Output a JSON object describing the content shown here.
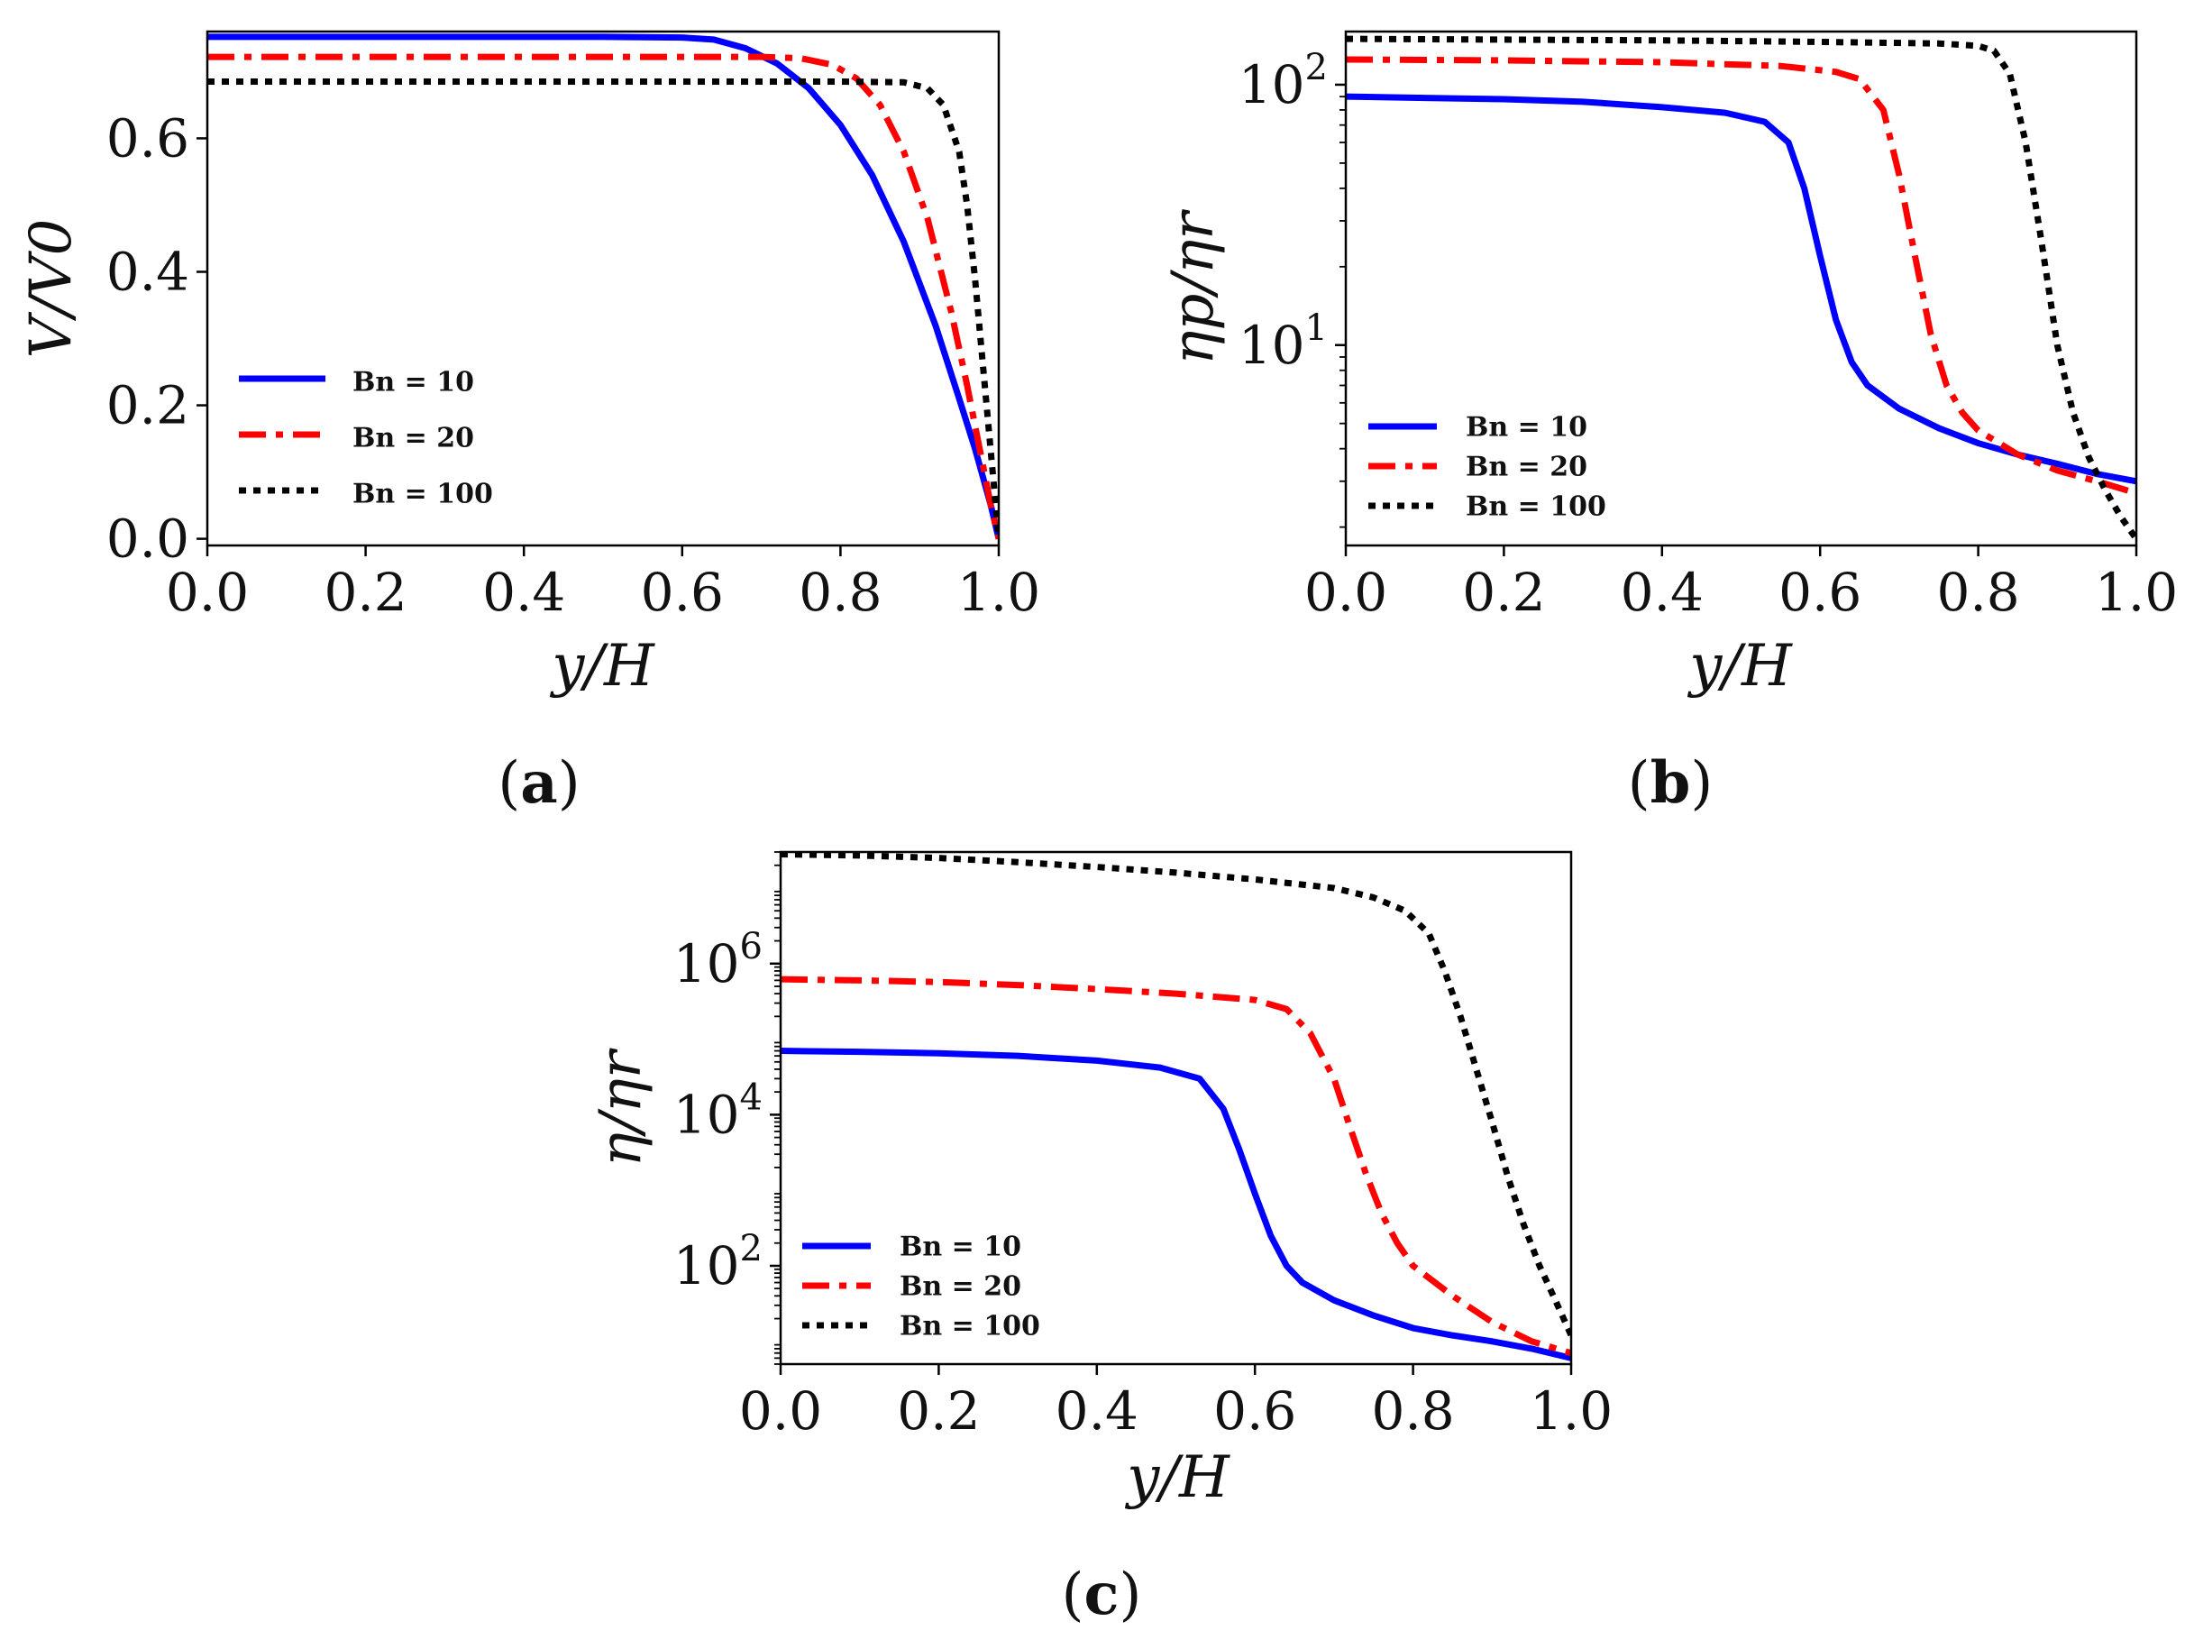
{
  "chart_data": [
    {
      "id": "a",
      "type": "line",
      "panel_label": "a",
      "xlabel": "y/H",
      "ylabel": "V/V0",
      "yscale": "linear",
      "xlim": [
        0.0,
        1.0
      ],
      "ylim": [
        -0.01,
        0.76
      ],
      "xticks": [
        0.0,
        0.2,
        0.4,
        0.6,
        0.8,
        1.0
      ],
      "xtick_labels": [
        "0.0",
        "0.2",
        "0.4",
        "0.6",
        "0.8",
        "1.0"
      ],
      "yticks": [
        0.0,
        0.2,
        0.4,
        0.6
      ],
      "ytick_labels": [
        "0.0",
        "0.2",
        "0.4",
        "0.6"
      ],
      "legend_position": "left",
      "series": [
        {
          "name": "Bn = 10",
          "color": "#0000ff",
          "dash": "solid",
          "x": [
            0.0,
            0.1,
            0.2,
            0.3,
            0.4,
            0.5,
            0.6,
            0.64,
            0.68,
            0.72,
            0.76,
            0.8,
            0.84,
            0.88,
            0.92,
            0.95,
            0.97,
            0.99,
            1.0
          ],
          "y": [
            0.752,
            0.752,
            0.752,
            0.752,
            0.752,
            0.752,
            0.751,
            0.748,
            0.735,
            0.712,
            0.675,
            0.62,
            0.545,
            0.445,
            0.32,
            0.21,
            0.135,
            0.05,
            0.0
          ]
        },
        {
          "name": "Bn = 20",
          "color": "#ff0000",
          "dash": "dashdot",
          "x": [
            0.0,
            0.2,
            0.4,
            0.6,
            0.7,
            0.75,
            0.79,
            0.82,
            0.85,
            0.88,
            0.91,
            0.94,
            0.96,
            0.98,
            0.99,
            1.0
          ],
          "y": [
            0.722,
            0.722,
            0.722,
            0.722,
            0.722,
            0.72,
            0.71,
            0.69,
            0.65,
            0.58,
            0.48,
            0.34,
            0.23,
            0.11,
            0.05,
            0.0
          ]
        },
        {
          "name": "Bn = 100",
          "color": "#000000",
          "dash": "dotted",
          "x": [
            0.0,
            0.2,
            0.4,
            0.6,
            0.8,
            0.88,
            0.91,
            0.93,
            0.95,
            0.96,
            0.97,
            0.98,
            0.99,
            1.0
          ],
          "y": [
            0.685,
            0.685,
            0.685,
            0.685,
            0.685,
            0.684,
            0.675,
            0.65,
            0.58,
            0.5,
            0.39,
            0.26,
            0.13,
            0.0
          ]
        }
      ]
    },
    {
      "id": "b",
      "type": "line",
      "panel_label": "b",
      "xlabel": "y/H",
      "ylabel": "ηp/ηr",
      "yscale": "log",
      "xlim": [
        0.0,
        1.0
      ],
      "ylim": [
        1.7,
        160
      ],
      "xticks": [
        0.0,
        0.2,
        0.4,
        0.6,
        0.8,
        1.0
      ],
      "xtick_labels": [
        "0.0",
        "0.2",
        "0.4",
        "0.6",
        "0.8",
        "1.0"
      ],
      "yticks": [
        10,
        100
      ],
      "ytick_bases": [
        "10",
        "10"
      ],
      "ytick_exponents": [
        "1",
        "2"
      ],
      "legend_position": "lower-left",
      "series": [
        {
          "name": "Bn = 10",
          "color": "#0000ff",
          "dash": "solid",
          "x": [
            0.0,
            0.1,
            0.2,
            0.3,
            0.4,
            0.48,
            0.53,
            0.56,
            0.58,
            0.6,
            0.62,
            0.64,
            0.66,
            0.7,
            0.75,
            0.8,
            0.85,
            0.9,
            0.95,
            1.0
          ],
          "y": [
            90,
            89,
            88,
            86,
            82,
            78,
            72,
            60,
            40,
            22,
            12.5,
            8.6,
            7.0,
            5.7,
            4.8,
            4.2,
            3.8,
            3.5,
            3.2,
            3.0
          ]
        },
        {
          "name": "Bn = 20",
          "color": "#ff0000",
          "dash": "dashdot",
          "x": [
            0.0,
            0.2,
            0.4,
            0.55,
            0.62,
            0.65,
            0.68,
            0.7,
            0.72,
            0.74,
            0.76,
            0.78,
            0.8,
            0.85,
            0.9,
            0.95,
            1.0
          ],
          "y": [
            125,
            124,
            122,
            118,
            112,
            105,
            80,
            45,
            22,
            11,
            7.0,
            5.5,
            4.7,
            3.8,
            3.3,
            3.0,
            2.7
          ]
        },
        {
          "name": "Bn = 100",
          "color": "#000000",
          "dash": "dotted",
          "x": [
            0.0,
            0.2,
            0.4,
            0.6,
            0.75,
            0.8,
            0.82,
            0.84,
            0.86,
            0.88,
            0.9,
            0.92,
            0.94,
            0.96,
            0.98,
            1.0
          ],
          "y": [
            150,
            149,
            148,
            146,
            144,
            141,
            135,
            110,
            60,
            25,
            10,
            5.5,
            3.7,
            2.8,
            2.2,
            1.8
          ]
        }
      ]
    },
    {
      "id": "c",
      "type": "line",
      "panel_label": "c",
      "xlabel": "y/H",
      "ylabel": "η/ηr",
      "yscale": "log",
      "xlim": [
        0.0,
        1.0
      ],
      "ylim": [
        5,
        30000000
      ],
      "xticks": [
        0.0,
        0.2,
        0.4,
        0.6,
        0.8,
        1.0
      ],
      "xtick_labels": [
        "0.0",
        "0.2",
        "0.4",
        "0.6",
        "0.8",
        "1.0"
      ],
      "yticks": [
        100,
        10000,
        1000000
      ],
      "ytick_bases": [
        "10",
        "10",
        "10"
      ],
      "ytick_exponents": [
        "2",
        "4",
        "6"
      ],
      "legend_position": "lower-left",
      "series": [
        {
          "name": "Bn = 10",
          "color": "#0000ff",
          "dash": "solid",
          "x": [
            0.0,
            0.1,
            0.2,
            0.3,
            0.4,
            0.48,
            0.53,
            0.56,
            0.58,
            0.6,
            0.62,
            0.64,
            0.66,
            0.7,
            0.75,
            0.8,
            0.85,
            0.9,
            0.95,
            1.0
          ],
          "y": [
            70000,
            68000,
            65000,
            60000,
            52000,
            42000,
            30000,
            12000,
            3500,
            900,
            250,
            100,
            60,
            35,
            22,
            15,
            12,
            10,
            8,
            6
          ]
        },
        {
          "name": "Bn = 20",
          "color": "#ff0000",
          "dash": "dashdot",
          "x": [
            0.0,
            0.1,
            0.2,
            0.3,
            0.4,
            0.5,
            0.6,
            0.64,
            0.67,
            0.7,
            0.72,
            0.74,
            0.76,
            0.78,
            0.8,
            0.85,
            0.9,
            0.95,
            1.0
          ],
          "y": [
            620000,
            600000,
            570000,
            520000,
            460000,
            400000,
            330000,
            250000,
            120000,
            30000,
            7000,
            1700,
            500,
            200,
            100,
            40,
            18,
            10,
            7
          ]
        },
        {
          "name": "Bn = 100",
          "color": "#000000",
          "dash": "dotted",
          "x": [
            0.0,
            0.1,
            0.2,
            0.3,
            0.4,
            0.5,
            0.6,
            0.7,
            0.75,
            0.79,
            0.82,
            0.84,
            0.86,
            0.88,
            0.9,
            0.92,
            0.94,
            0.96,
            0.98,
            1.0
          ],
          "y": [
            28000000,
            27000000,
            25000000,
            22000000,
            19000000,
            16000000,
            13000000,
            10000000,
            7500000,
            5000000,
            2500000,
            800000,
            200000,
            40000,
            8000,
            1500,
            350,
            100,
            35,
            12
          ]
        }
      ]
    }
  ]
}
